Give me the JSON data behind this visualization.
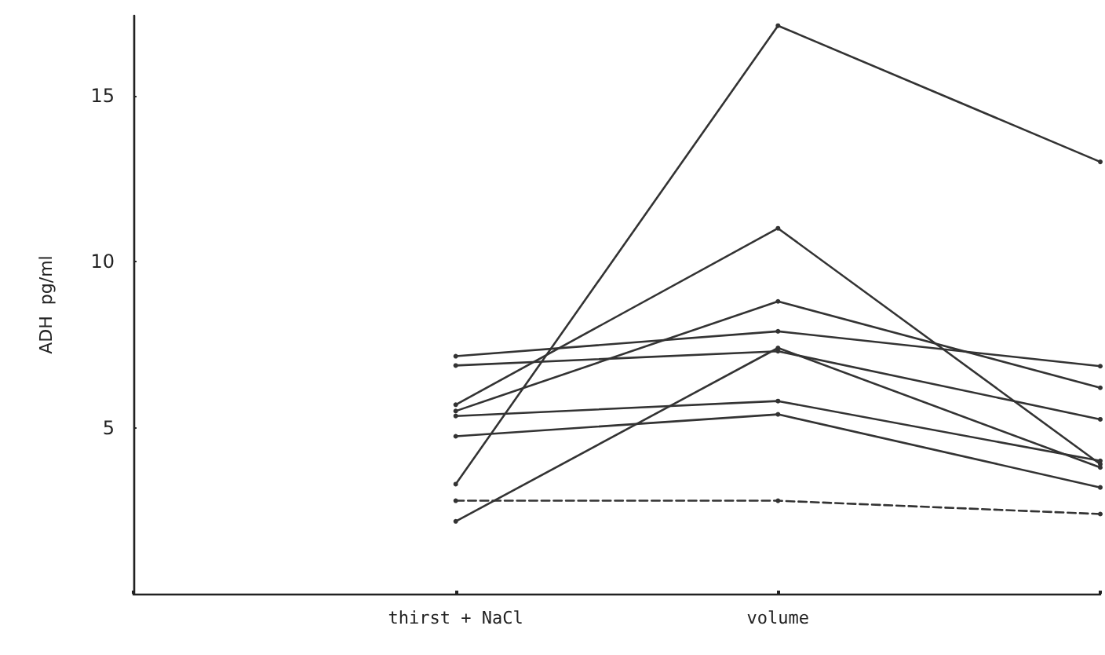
{
  "chart_data": {
    "type": "line",
    "ylabel": "ADH  pg/ml",
    "categories": [
      null,
      "thirst + NaCl",
      "volume",
      null
    ],
    "ylim": [
      0,
      17.4
    ],
    "yticks": [
      5,
      10,
      15
    ],
    "grid": false,
    "marker": "circle",
    "line_style": "solid",
    "series": [
      {
        "color": "#333333",
        "values": [
          null,
          3.3,
          17.1,
          13.0
        ]
      },
      {
        "color": "#333333",
        "values": [
          null,
          7.15,
          7.9,
          6.85
        ]
      },
      {
        "color": "#333333",
        "values": [
          null,
          6.87,
          7.3,
          5.25
        ]
      },
      {
        "color": "#333333",
        "values": [
          null,
          5.69,
          11.0,
          3.9
        ]
      },
      {
        "color": "#333333",
        "values": [
          null,
          5.5,
          8.8,
          6.2
        ]
      },
      {
        "color": "#333333",
        "values": [
          null,
          5.35,
          5.8,
          4.0
        ]
      },
      {
        "color": "#333333",
        "values": [
          null,
          4.74,
          5.4,
          3.2
        ]
      },
      {
        "color": "#333333",
        "values": [
          null,
          2.18,
          7.4,
          3.8
        ]
      },
      {
        "color": "#333333",
        "line_style": "dashed",
        "values": [
          null,
          2.8,
          2.8,
          2.4
        ]
      }
    ]
  }
}
